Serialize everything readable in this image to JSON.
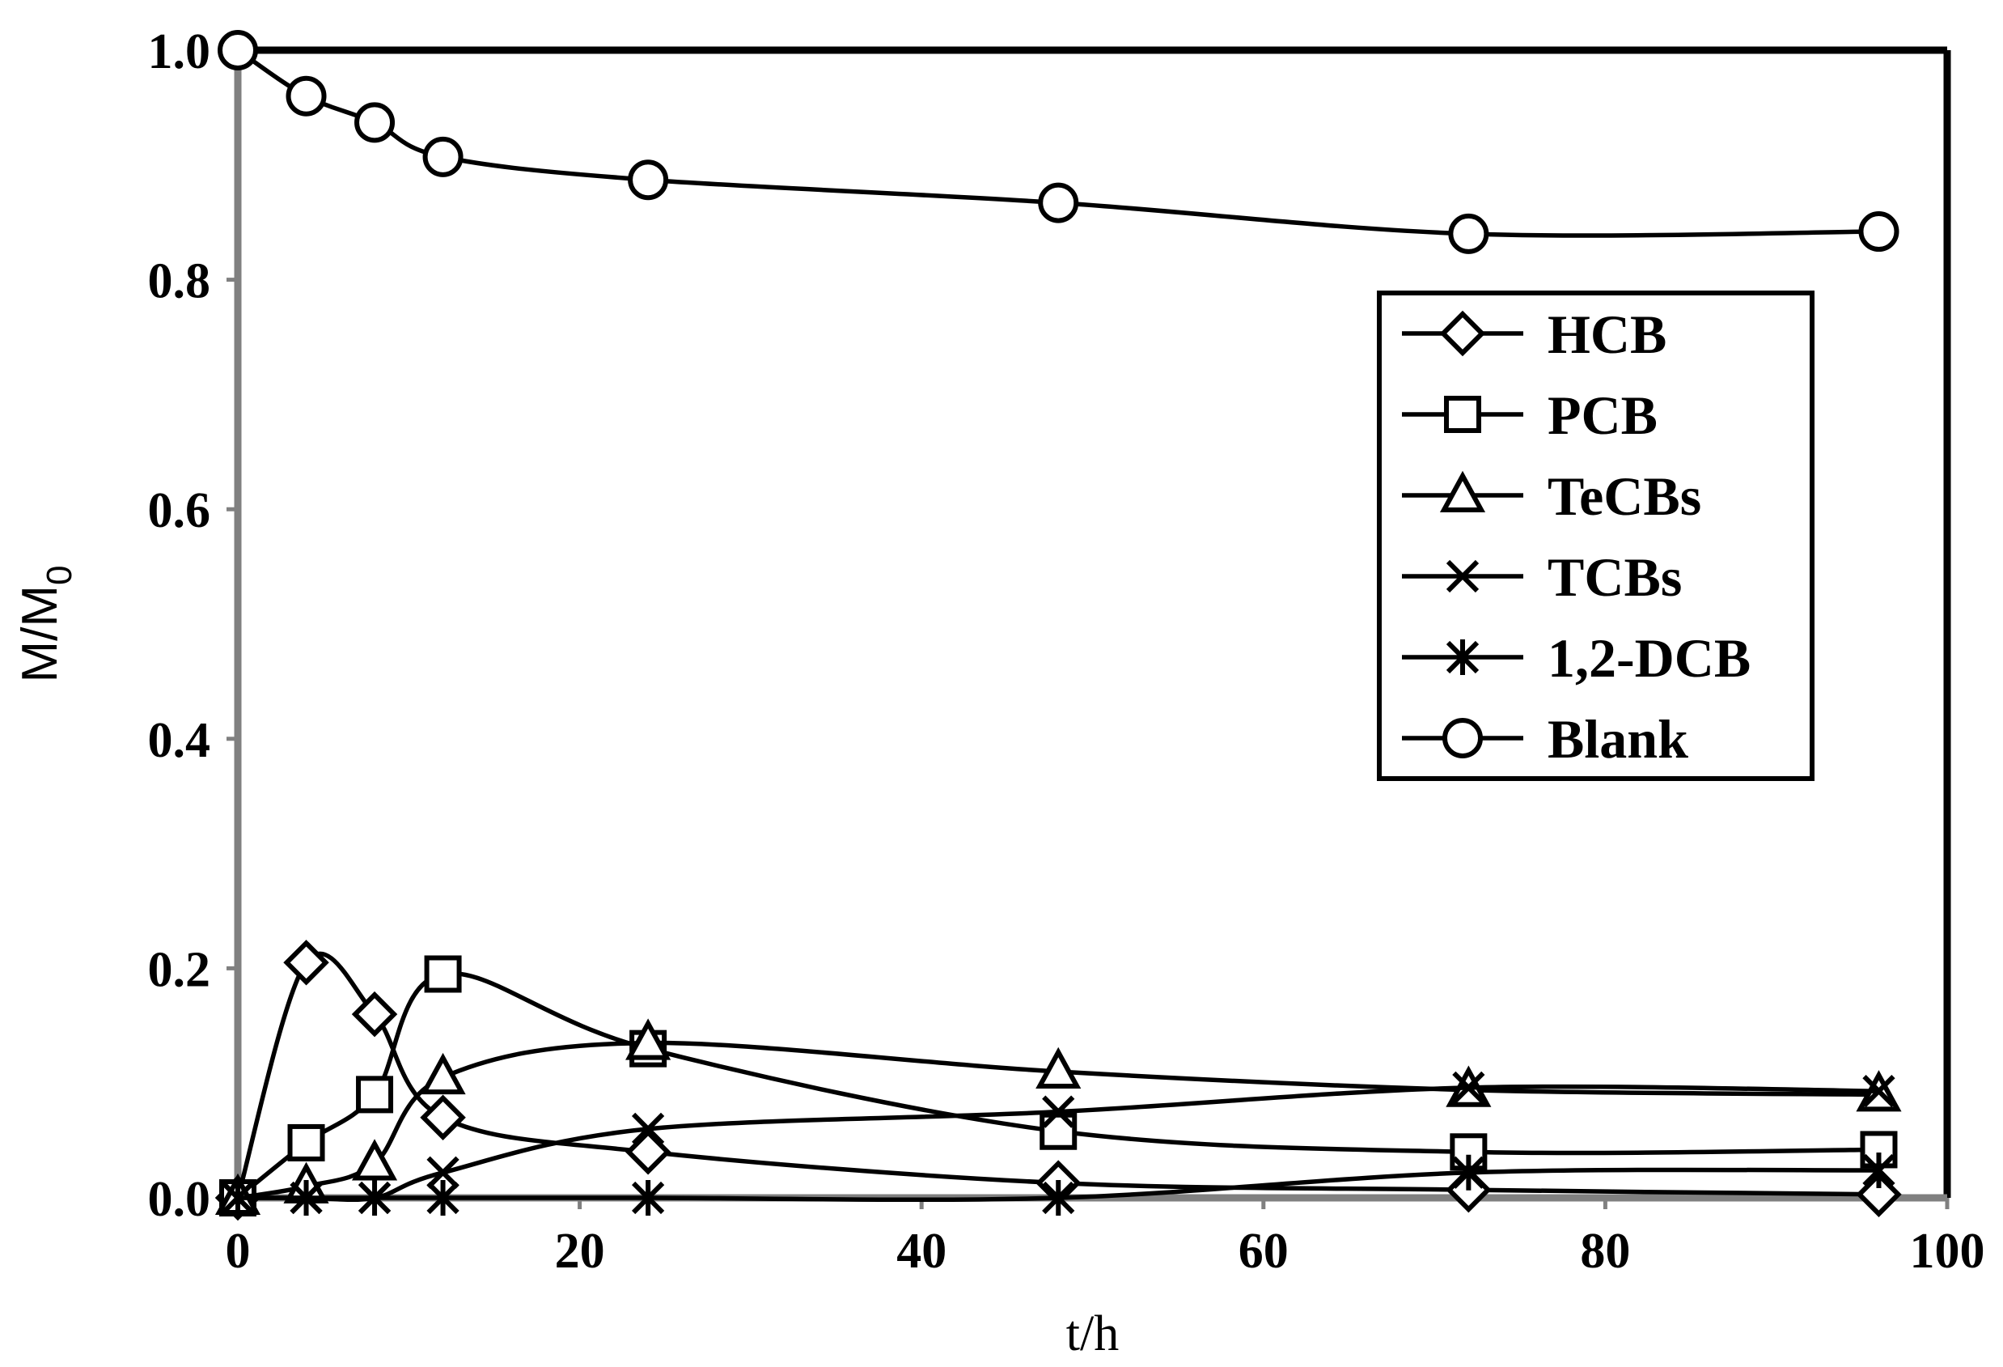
{
  "chart_data": {
    "type": "line",
    "title": "",
    "xlabel": "t/h",
    "ylabel": "M/M0",
    "ylabel_main": "M/M",
    "ylabel_sub": "0",
    "xlim": [
      0,
      100
    ],
    "ylim": [
      0,
      1.0
    ],
    "xticks": [
      0,
      20,
      40,
      60,
      80,
      100
    ],
    "yticks": [
      0.0,
      0.2,
      0.4,
      0.6,
      0.8,
      1.0
    ],
    "xtick_labels": [
      "0",
      "20",
      "40",
      "60",
      "80",
      "100"
    ],
    "ytick_labels": [
      "0.0",
      "0.2",
      "0.4",
      "0.6",
      "0.8",
      "1.0"
    ],
    "grid": false,
    "legend_position": "right",
    "series": [
      {
        "name": "HCB",
        "marker": "diamond",
        "x": [
          0,
          4,
          8,
          12,
          24,
          48,
          72,
          96
        ],
        "y": [
          0.0,
          0.205,
          0.16,
          0.07,
          0.04,
          0.013,
          0.007,
          0.003
        ]
      },
      {
        "name": "PCB",
        "marker": "square",
        "x": [
          0,
          4,
          8,
          12,
          24,
          48,
          72,
          96
        ],
        "y": [
          0.0,
          0.048,
          0.09,
          0.195,
          0.13,
          0.058,
          0.04,
          0.042
        ]
      },
      {
        "name": "TeCBs",
        "marker": "triangle",
        "x": [
          0,
          4,
          8,
          12,
          24,
          48,
          72,
          96
        ],
        "y": [
          0.0,
          0.01,
          0.03,
          0.105,
          0.135,
          0.11,
          0.094,
          0.09
        ]
      },
      {
        "name": "TCBs",
        "marker": "x",
        "x": [
          0,
          4,
          8,
          12,
          24,
          48,
          72,
          96
        ],
        "y": [
          0.0,
          0.0,
          0.0,
          0.022,
          0.06,
          0.075,
          0.096,
          0.093
        ]
      },
      {
        "name": "1,2-DCB",
        "marker": "asterisk",
        "x": [
          0,
          4,
          8,
          12,
          24,
          48,
          72,
          96
        ],
        "y": [
          0.0,
          0.0,
          0.0,
          0.0,
          0.0,
          0.0,
          0.022,
          0.024
        ]
      },
      {
        "name": "Blank",
        "marker": "circle",
        "x": [
          0,
          4,
          8,
          12,
          24,
          48,
          72,
          96
        ],
        "y": [
          1.0,
          0.96,
          0.937,
          0.907,
          0.887,
          0.867,
          0.84,
          0.842
        ]
      }
    ]
  }
}
